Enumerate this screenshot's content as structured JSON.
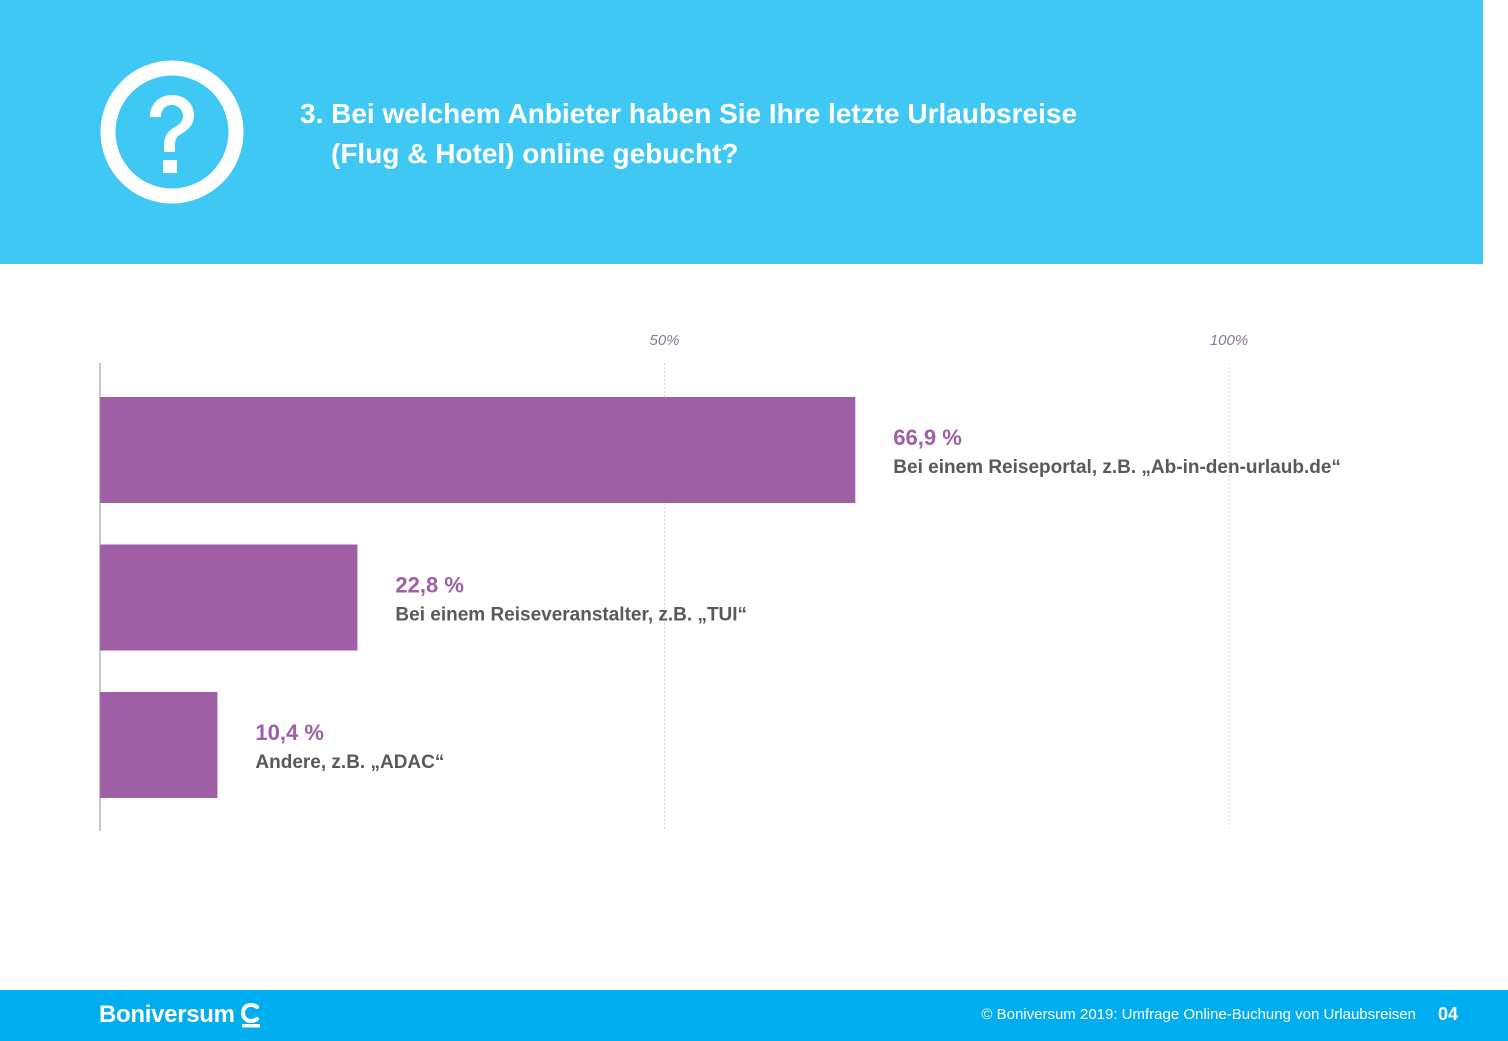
{
  "header": {
    "title_line1": "3. Bei welchem Anbieter haben Sie Ihre letzte Urlaubsreise",
    "title_line2": "(Flug & Hotel) online gebucht?",
    "icon": "question-circle-icon"
  },
  "chart_data": {
    "type": "bar",
    "orientation": "horizontal",
    "title": "",
    "xlabel": "",
    "ylabel": "",
    "xlim": [
      0,
      100
    ],
    "grid": true,
    "ticks": [
      {
        "value": 50,
        "label": "50%"
      },
      {
        "value": 100,
        "label": "100%"
      }
    ],
    "categories": [
      "Bei einem Reiseportal, z.B. „Ab-in-den-urlaub.de“",
      "Bei einem Reiseveranstalter, z.B. „TUI“",
      "Andere, z.B. „ADAC“"
    ],
    "values": [
      66.9,
      22.8,
      10.4
    ],
    "value_labels": [
      "66,9 %",
      "22,8 %",
      "10,4 %"
    ]
  },
  "colors": {
    "header_bg": "#40c8f4",
    "bar": "#9e5fa5",
    "value_label": "#9e5fa5",
    "category_label": "#58595b",
    "tick_label": "#8a7a9a",
    "footer_bg": "#00adef"
  },
  "footer": {
    "brand": "Boniversum",
    "brand_icon": "boniversum-logo-icon",
    "copyright": "© Boniversum 2019: Umfrage Online-Buchung von Urlaubsreisen",
    "page_number": "04"
  }
}
